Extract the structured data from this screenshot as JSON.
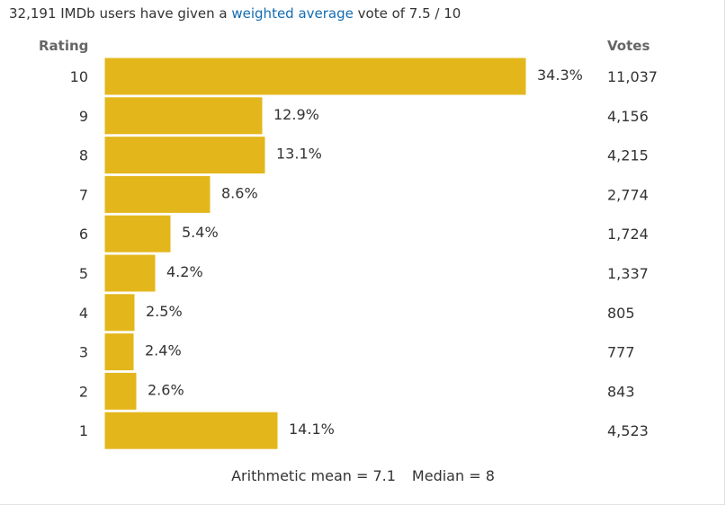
{
  "summary": {
    "prefix": "32,191 IMDb users have given a ",
    "link": "weighted average",
    "suffix": " vote of 7.5 / 10"
  },
  "headers": {
    "rating": "Rating",
    "votes": "Votes"
  },
  "chart_data": {
    "type": "bar",
    "orientation": "horizontal",
    "title": "32,191 IMDb users have given a weighted average vote of 7.5 / 10",
    "categories": [
      "10",
      "9",
      "8",
      "7",
      "6",
      "5",
      "4",
      "3",
      "2",
      "1"
    ],
    "percent_labels": [
      "34.3%",
      "12.9%",
      "13.1%",
      "8.6%",
      "5.4%",
      "4.2%",
      "2.5%",
      "2.4%",
      "2.6%",
      "14.1%"
    ],
    "values": [
      34.3,
      12.9,
      13.1,
      8.6,
      5.4,
      4.2,
      2.5,
      2.4,
      2.6,
      14.1
    ],
    "votes": [
      "11,037",
      "4,156",
      "4,215",
      "2,774",
      "1,724",
      "1,337",
      "805",
      "777",
      "843",
      "4,523"
    ],
    "xlim": [
      0,
      34.3
    ],
    "bar_color": "#e3b71c",
    "xlabel": "",
    "ylabel": "Rating"
  },
  "footer": {
    "mean": "Arithmetic mean = 7.1",
    "median": "Median = 8"
  },
  "colors": {
    "link": "#136cb2",
    "bar": "#e3b71c",
    "header": "#666666",
    "text": "#333333"
  }
}
